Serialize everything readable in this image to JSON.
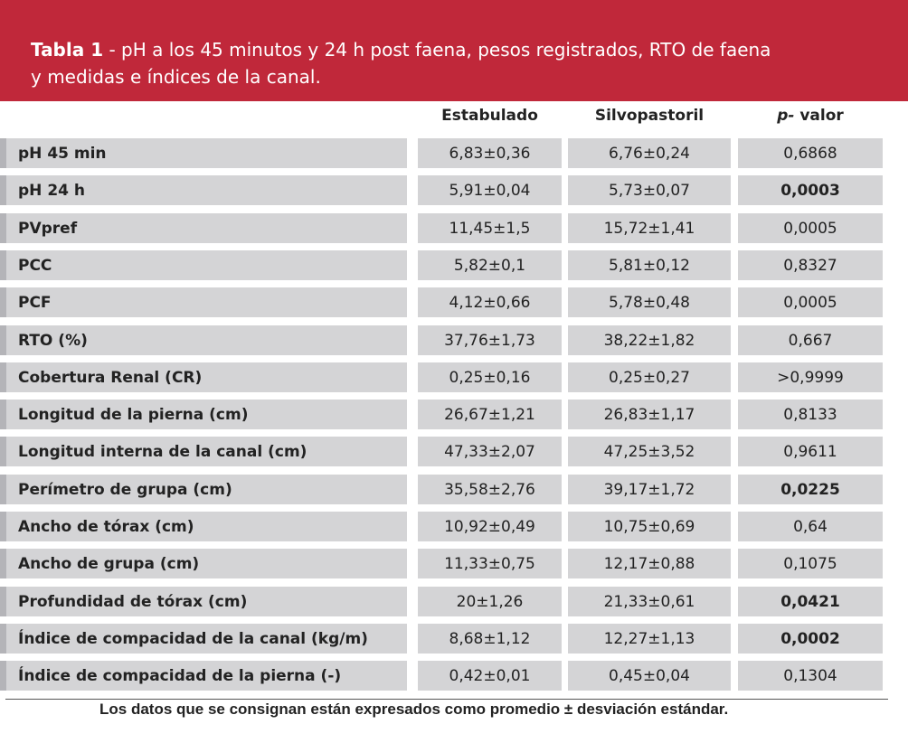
{
  "table": {
    "title_bold": "Tabla 1",
    "title_rest": " - pH a los 45 minutos y 24 h post faena, pesos registrados, RTO de faena",
    "title_line2": "y medidas e índices de la canal.",
    "headers": {
      "estabulado": "Estabulado",
      "silvopastoril": "Silvopastoril",
      "p_prefix": "p-",
      "p_suffix": " valor"
    },
    "rows": [
      {
        "label": "pH 45 min",
        "estabulado": "6,83±0,36",
        "silvopastoril": "6,76±0,24",
        "p": "0,6868",
        "p_bold": false
      },
      {
        "label": "pH 24 h",
        "estabulado": "5,91±0,04",
        "silvopastoril": "5,73±0,07",
        "p": "0,0003",
        "p_bold": true
      },
      {
        "label": "PVpref",
        "estabulado": "11,45±1,5",
        "silvopastoril": "15,72±1,41",
        "p": "0,0005",
        "p_bold": false
      },
      {
        "label": "PCC",
        "estabulado": "5,82±0,1",
        "silvopastoril": "5,81±0,12",
        "p": "0,8327",
        "p_bold": false
      },
      {
        "label": "PCF",
        "estabulado": "4,12±0,66",
        "silvopastoril": "5,78±0,48",
        "p": "0,0005",
        "p_bold": false
      },
      {
        "label": "RTO (%)",
        "estabulado": "37,76±1,73",
        "silvopastoril": "38,22±1,82",
        "p": "0,667",
        "p_bold": false
      },
      {
        "label": "Cobertura Renal (CR)",
        "estabulado": "0,25±0,16",
        "silvopastoril": "0,25±0,27",
        "p": ">0,9999",
        "p_bold": false
      },
      {
        "label": "Longitud de la pierna (cm)",
        "estabulado": "26,67±1,21",
        "silvopastoril": "26,83±1,17",
        "p": "0,8133",
        "p_bold": false
      },
      {
        "label": "Longitud interna de la canal (cm)",
        "estabulado": "47,33±2,07",
        "silvopastoril": "47,25±3,52",
        "p": "0,9611",
        "p_bold": false
      },
      {
        "label": "Perímetro de grupa (cm)",
        "estabulado": "35,58±2,76",
        "silvopastoril": "39,17±1,72",
        "p": "0,0225",
        "p_bold": true
      },
      {
        "label": "Ancho de tórax (cm)",
        "estabulado": "10,92±0,49",
        "silvopastoril": "10,75±0,69",
        "p": "0,64",
        "p_bold": false
      },
      {
        "label": "Ancho de grupa (cm)",
        "estabulado": "11,33±0,75",
        "silvopastoril": "12,17±0,88",
        "p": "0,1075",
        "p_bold": false
      },
      {
        "label": "Profundidad de tórax (cm)",
        "estabulado": "20±1,26",
        "silvopastoril": "21,33±0,61",
        "p": "0,0421",
        "p_bold": true
      },
      {
        "label": "Índice de compacidad de la canal (kg/m)",
        "estabulado": "8,68±1,12",
        "silvopastoril": "12,27±1,13",
        "p": "0,0002",
        "p_bold": true
      },
      {
        "label": "Índice de compacidad de la pierna (-)",
        "estabulado": "0,42±0,01",
        "silvopastoril": "0,45±0,04",
        "p": "0,1304",
        "p_bold": false
      }
    ],
    "footnote": "Los datos que se consignan están expresados como promedio ± desviación estándar.",
    "colors": {
      "banner": "#c0283a",
      "cell": "#d4d4d6",
      "label_accent": "#b4b4b8"
    }
  }
}
